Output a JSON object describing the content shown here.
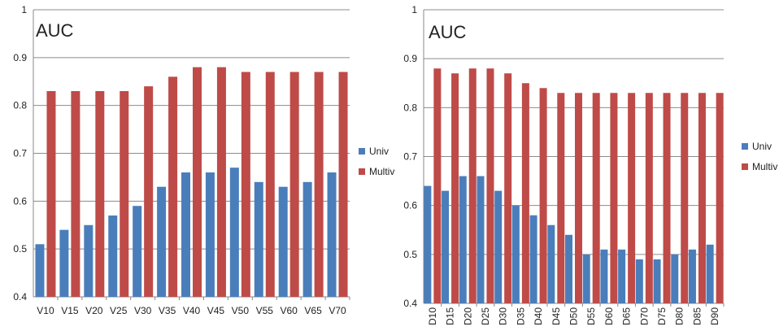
{
  "colors": {
    "univ": "#4a7ebb",
    "multiv": "#be4b48",
    "grid": "#8c8c8c",
    "axis": "#888888"
  },
  "chart_data": [
    {
      "type": "bar",
      "title": "AUC",
      "xlabel": "",
      "ylabel": "",
      "ylim": [
        0.4,
        1
      ],
      "yticks": [
        "0.4",
        "0.5",
        "0.6",
        "0.7",
        "0.8",
        "0.9",
        "1"
      ],
      "grid": true,
      "legend_position": "right",
      "categories": [
        "V10",
        "V15",
        "V20",
        "V25",
        "V30",
        "V35",
        "V40",
        "V45",
        "V50",
        "V55",
        "V60",
        "V65",
        "V70"
      ],
      "series": [
        {
          "name": "Univ",
          "values": [
            0.51,
            0.54,
            0.55,
            0.57,
            0.59,
            0.63,
            0.66,
            0.66,
            0.67,
            0.64,
            0.63,
            0.64,
            0.66
          ]
        },
        {
          "name": "Multiv",
          "values": [
            0.83,
            0.83,
            0.83,
            0.83,
            0.84,
            0.86,
            0.88,
            0.88,
            0.87,
            0.87,
            0.87,
            0.87,
            0.87
          ]
        }
      ]
    },
    {
      "type": "bar",
      "title": "AUC",
      "xlabel": "",
      "ylabel": "",
      "ylim": [
        0.4,
        1
      ],
      "yticks": [
        "0.4",
        "0.5",
        "0.6",
        "0.7",
        "0.8",
        "0.9",
        "1"
      ],
      "grid": true,
      "legend_position": "right",
      "categories": [
        "D10",
        "D15",
        "D20",
        "D25",
        "D30",
        "D35",
        "D40",
        "D45",
        "D50",
        "D55",
        "D60",
        "D65",
        "D70",
        "D75",
        "D80",
        "D85",
        "D90"
      ],
      "series": [
        {
          "name": "Univ",
          "values": [
            0.64,
            0.63,
            0.66,
            0.66,
            0.63,
            0.6,
            0.58,
            0.56,
            0.54,
            0.5,
            0.51,
            0.51,
            0.49,
            0.49,
            0.5,
            0.51,
            0.52
          ]
        },
        {
          "name": "Multiv",
          "values": [
            0.88,
            0.87,
            0.88,
            0.88,
            0.87,
            0.85,
            0.84,
            0.83,
            0.83,
            0.83,
            0.83,
            0.83,
            0.83,
            0.83,
            0.83,
            0.83,
            0.83
          ]
        }
      ]
    }
  ]
}
